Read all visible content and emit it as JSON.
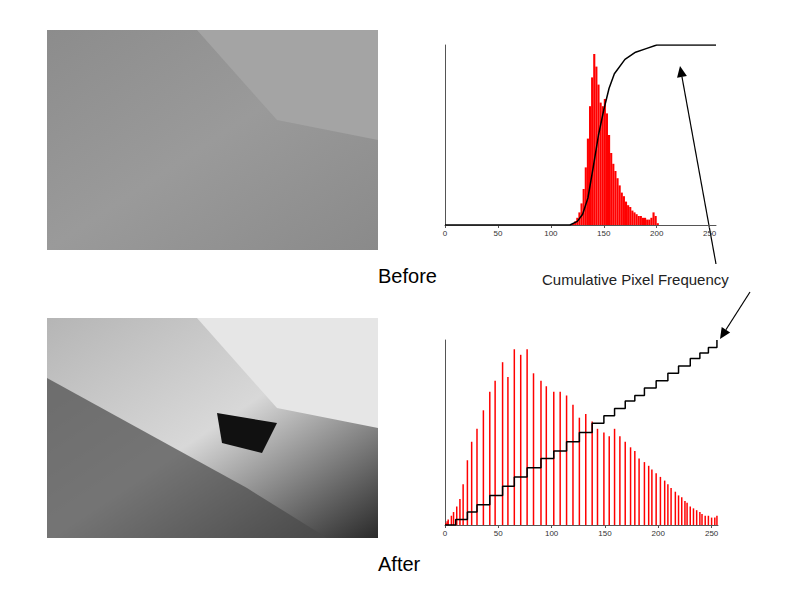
{
  "chart_data": [
    {
      "type": "histogram",
      "title": "Before",
      "grid": false,
      "tick_labels": "x",
      "xlim": [
        0,
        256
      ],
      "xticks": [
        0,
        50,
        100,
        150,
        200,
        250
      ],
      "ylim": [
        0,
        100
      ],
      "y2lim": [
        0,
        1
      ],
      "series": [
        {
          "type": "histogram",
          "color": "#ff0000",
          "bins": [
            118,
            120,
            122,
            124,
            126,
            128,
            130,
            132,
            134,
            136,
            138,
            140,
            142,
            144,
            146,
            148,
            150,
            152,
            154,
            156,
            158,
            160,
            162,
            164,
            166,
            168,
            170,
            172,
            174,
            176,
            178,
            180,
            182,
            184,
            186,
            188,
            190,
            192,
            194,
            196,
            198,
            200,
            202
          ],
          "counts": [
            0.5,
            1,
            2,
            4,
            7,
            12,
            20,
            32,
            48,
            66,
            82,
            95,
            88,
            78,
            68,
            66,
            70,
            62,
            50,
            40,
            34,
            30,
            26,
            22,
            18,
            16,
            13,
            11,
            10,
            8,
            7,
            6,
            5,
            5,
            4,
            4,
            3,
            3,
            4,
            7,
            5,
            1
          ]
        },
        {
          "type": "line",
          "color": "#000000",
          "line_style": "solid",
          "axis": "y2",
          "x": [
            0,
            118,
            125,
            130,
            135,
            140,
            145,
            150,
            155,
            160,
            170,
            180,
            190,
            200,
            256
          ],
          "values": [
            0,
            0,
            0.02,
            0.06,
            0.15,
            0.32,
            0.5,
            0.64,
            0.76,
            0.84,
            0.92,
            0.96,
            0.98,
            1,
            1
          ]
        }
      ]
    },
    {
      "type": "histogram",
      "title": "After",
      "grid": false,
      "tick_labels": "x",
      "xlim": [
        0,
        256
      ],
      "xticks": [
        0,
        50,
        100,
        150,
        200,
        250
      ],
      "ylim": [
        0,
        100
      ],
      "y2lim": [
        0,
        1
      ],
      "series": [
        {
          "type": "bar",
          "color": "#ff0000",
          "x": [
            0,
            1,
            2,
            3,
            6,
            8,
            11,
            14,
            17,
            21,
            25,
            30,
            36,
            42,
            47,
            54,
            59,
            65,
            71,
            77,
            83,
            90,
            95,
            102,
            108,
            114,
            120,
            126,
            132,
            138,
            143,
            149,
            154,
            159,
            164,
            169,
            174,
            178,
            182,
            187,
            191,
            194,
            198,
            202,
            206,
            209,
            212,
            216,
            219,
            222,
            225,
            227,
            230,
            233,
            236,
            239,
            241,
            244,
            247,
            250,
            253,
            255
          ],
          "values": [
            1,
            1,
            2,
            3,
            5,
            7,
            10,
            14,
            22,
            35,
            45,
            52,
            62,
            72,
            78,
            88,
            80,
            95,
            92,
            95,
            82,
            78,
            75,
            72,
            72,
            70,
            65,
            58,
            60,
            56,
            52,
            50,
            48,
            52,
            48,
            45,
            42,
            40,
            36,
            34,
            32,
            30,
            28,
            26,
            24,
            22,
            20,
            18,
            16,
            15,
            13,
            12,
            10,
            9,
            8,
            7,
            6,
            5,
            5,
            4,
            4,
            5
          ]
        },
        {
          "type": "line",
          "color": "#000000",
          "line_style": "step",
          "axis": "y2",
          "x": [
            0,
            10,
            21,
            30,
            42,
            54,
            65,
            77,
            90,
            102,
            114,
            126,
            138,
            149,
            159,
            169,
            178,
            187,
            198,
            209,
            219,
            230,
            239,
            247,
            255
          ],
          "values": [
            0,
            0.03,
            0.07,
            0.11,
            0.16,
            0.21,
            0.26,
            0.31,
            0.36,
            0.4,
            0.45,
            0.5,
            0.55,
            0.59,
            0.63,
            0.67,
            0.7,
            0.74,
            0.78,
            0.82,
            0.86,
            0.9,
            0.93,
            0.96,
            1
          ]
        }
      ]
    }
  ],
  "annotations": [
    "Cumulative Pixel Frequency"
  ]
}
